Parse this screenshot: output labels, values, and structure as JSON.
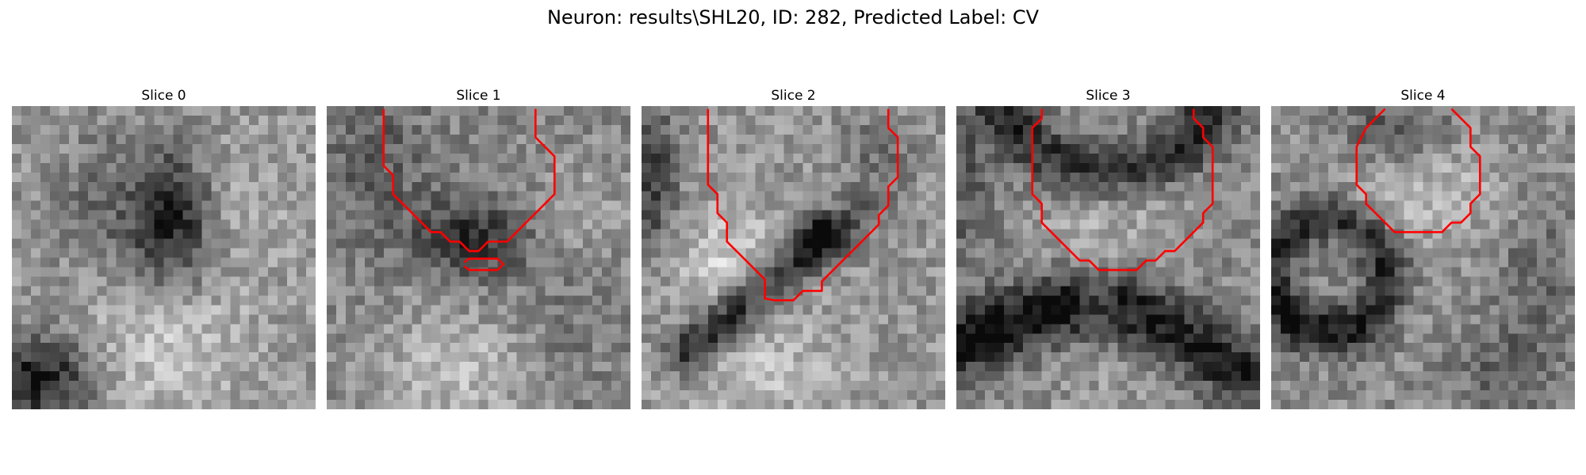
{
  "figure": {
    "title": "Neuron: results\\SHL20, ID: 282, Predicted Label: CV"
  },
  "panels": [
    {
      "title": "Slice 0"
    },
    {
      "title": "Slice 1"
    },
    {
      "title": "Slice 2"
    },
    {
      "title": "Slice 3"
    },
    {
      "title": "Slice 4"
    }
  ],
  "colors": {
    "contour": "#ff0000",
    "background": "#ffffff",
    "colormap": "gray"
  }
}
